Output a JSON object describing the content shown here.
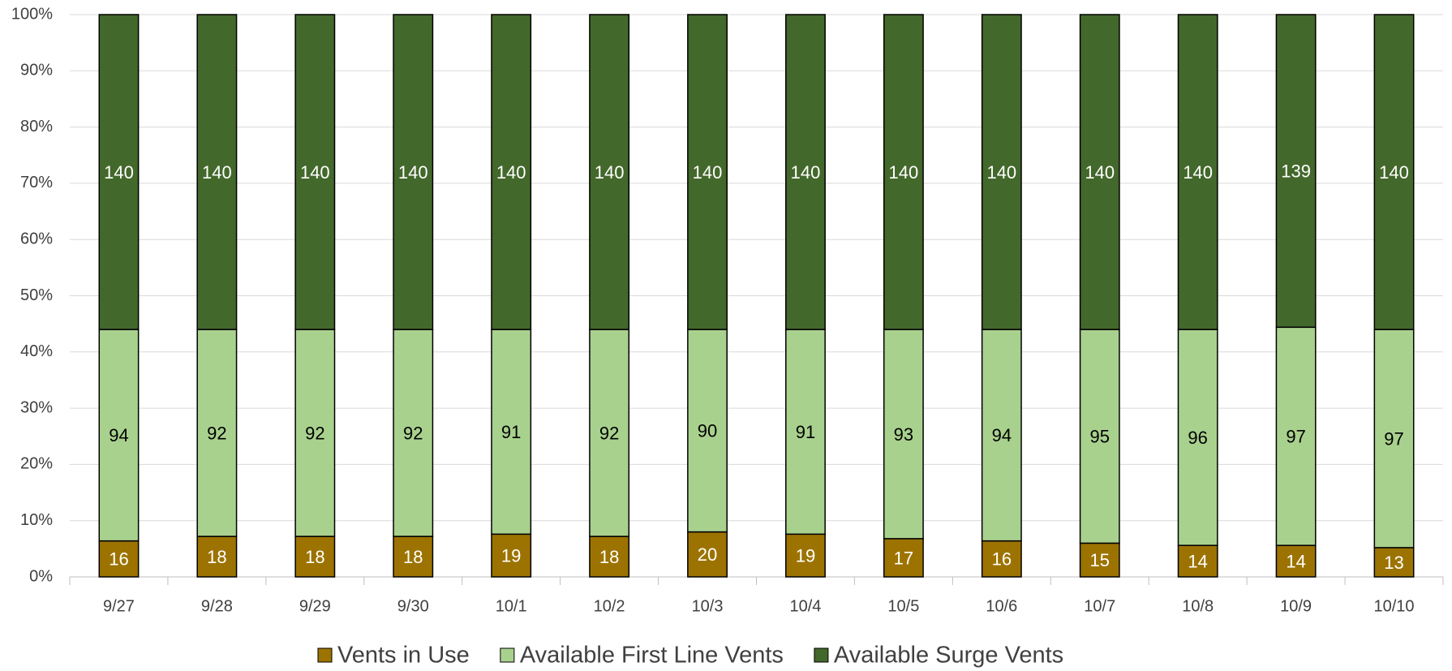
{
  "chart_data": {
    "type": "percent_stacked_bar",
    "categories": [
      "9/27",
      "9/28",
      "9/29",
      "9/30",
      "10/1",
      "10/2",
      "10/3",
      "10/4",
      "10/5",
      "10/6",
      "10/7",
      "10/8",
      "10/9",
      "10/10"
    ],
    "series": [
      {
        "name": "Vents in Use",
        "color": "#9c7300",
        "label_color": "#ffffff",
        "values": [
          16,
          18,
          18,
          18,
          19,
          18,
          20,
          19,
          17,
          16,
          15,
          14,
          14,
          13
        ]
      },
      {
        "name": "Available First Line Vents",
        "color": "#a9d18e",
        "label_color": "#000000",
        "values": [
          94,
          92,
          92,
          92,
          91,
          92,
          90,
          91,
          93,
          94,
          95,
          96,
          97,
          97
        ]
      },
      {
        "name": "Available Surge Vents",
        "color": "#43682b",
        "label_color": "#ffffff",
        "values": [
          140,
          140,
          140,
          140,
          140,
          140,
          140,
          140,
          140,
          140,
          140,
          140,
          139,
          140
        ]
      }
    ],
    "ylim": [
      0,
      100
    ],
    "yticks": [
      {
        "value": 0,
        "label": "0%"
      },
      {
        "value": 10,
        "label": "10%"
      },
      {
        "value": 20,
        "label": "20%"
      },
      {
        "value": 30,
        "label": "30%"
      },
      {
        "value": 40,
        "label": "40%"
      },
      {
        "value": 50,
        "label": "50%"
      },
      {
        "value": 60,
        "label": "60%"
      },
      {
        "value": 70,
        "label": "70%"
      },
      {
        "value": 80,
        "label": "80%"
      },
      {
        "value": 90,
        "label": "90%"
      },
      {
        "value": 100,
        "label": "100%"
      }
    ],
    "grid": true,
    "legend": "bottom"
  }
}
